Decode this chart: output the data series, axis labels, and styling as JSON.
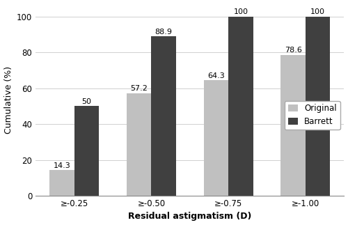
{
  "categories": [
    "≥-0.25",
    "≥-0.50",
    "≥-0.75",
    "≥-1.00"
  ],
  "original_values": [
    14.3,
    57.2,
    64.3,
    78.6
  ],
  "barrett_values": [
    50,
    88.9,
    100,
    100
  ],
  "original_color": "#c0c0c0",
  "barrett_color": "#404040",
  "original_label": "Original",
  "barrett_label": "Barrett",
  "ylabel": "Cumulative (%)",
  "xlabel": "Residual astigmatism (D)",
  "ylim": [
    0,
    107
  ],
  "yticks": [
    0,
    20,
    40,
    60,
    80,
    100
  ],
  "bar_width": 0.32,
  "label_fontsize": 9,
  "tick_fontsize": 8.5,
  "annotation_fontsize": 8,
  "legend_fontsize": 8.5,
  "background_color": "#ffffff"
}
